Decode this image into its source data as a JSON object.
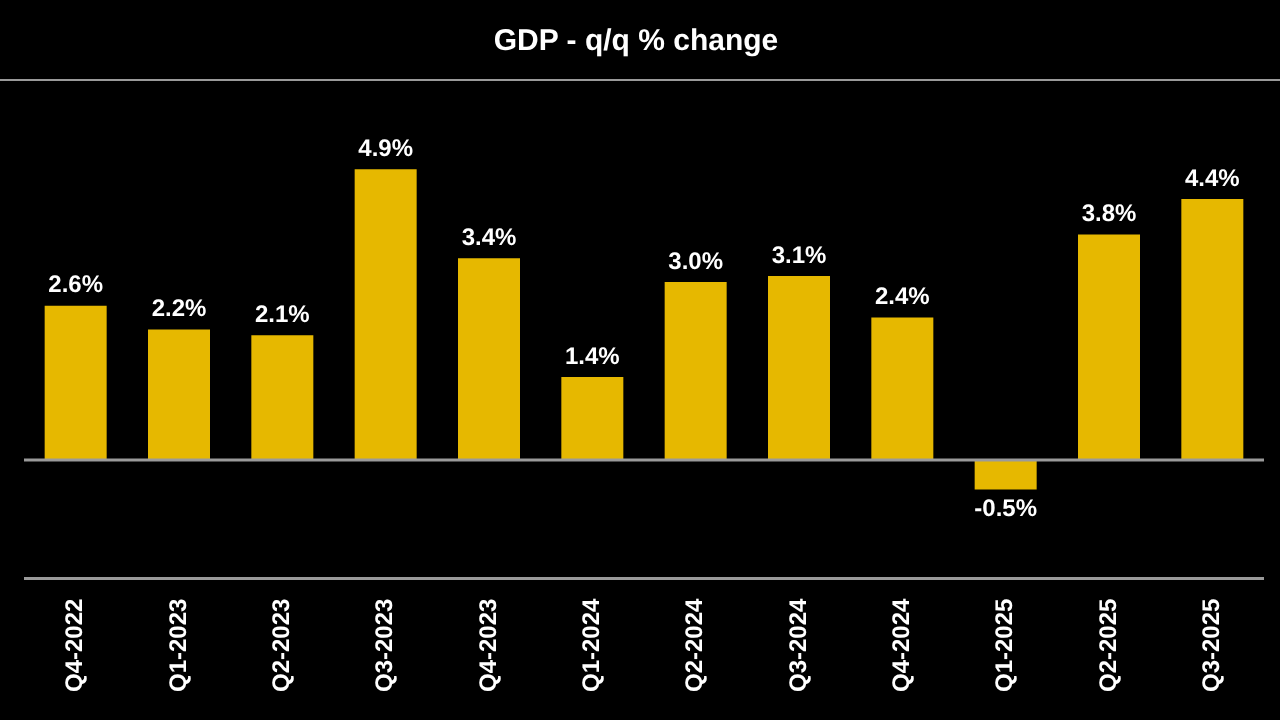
{
  "chart_data": {
    "type": "bar",
    "title": "GDP - q/q % change",
    "categories": [
      "Q4-2022",
      "Q1-2023",
      "Q2-2023",
      "Q3-2023",
      "Q4-2023",
      "Q1-2024",
      "Q2-2024",
      "Q3-2024",
      "Q4-2024",
      "Q1-2025",
      "Q2-2025",
      "Q3-2025"
    ],
    "values": [
      2.6,
      2.2,
      2.1,
      4.9,
      3.4,
      1.4,
      3.0,
      3.1,
      2.4,
      -0.5,
      3.8,
      4.4
    ],
    "value_labels": [
      "2.6%",
      "2.2%",
      "2.1%",
      "4.9%",
      "3.4%",
      "1.4%",
      "3.0%",
      "3.1%",
      "2.4%",
      "-0.5%",
      "3.8%",
      "4.4%"
    ],
    "color": "#e6b800"
  }
}
